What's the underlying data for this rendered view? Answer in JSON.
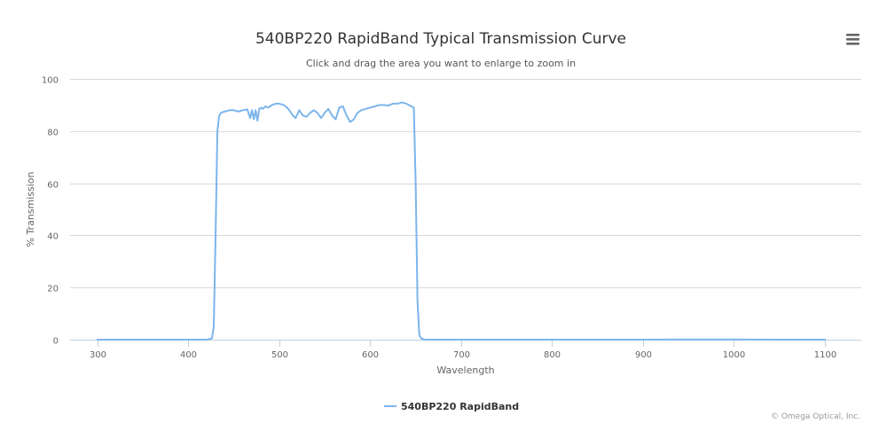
{
  "chart": {
    "title": "540BP220 RapidBand Typical Transmission Curve",
    "subtitle": "Click and drag the area you want to enlarge to zoom in",
    "credits": "© Omega Optical, Inc.",
    "menu_icon": "hamburger-menu-icon",
    "colors": {
      "background": "#ffffff",
      "series": "#7cb5ec",
      "grid": "#d8d8d8",
      "axis_line": "#c0d0e0",
      "title": "#333333",
      "label": "#666666",
      "legend_text": "#333333",
      "credits": "#999999"
    }
  },
  "chart_data": {
    "type": "line",
    "title": "540BP220 RapidBand Typical Transmission Curve",
    "subtitle": "Click and drag the area you want to enlarge to zoom in",
    "xlabel": "Wavelength",
    "ylabel": "% Transmission",
    "xlim": [
      270,
      1140
    ],
    "ylim": [
      0,
      100
    ],
    "x_ticks": [
      "300",
      "400",
      "500",
      "600",
      "700",
      "800",
      "900",
      "1000",
      "1100"
    ],
    "y_ticks": [
      "0",
      "20",
      "40",
      "60",
      "80",
      "100"
    ],
    "grid": "horizontal",
    "legend": "bottom-center",
    "series": [
      {
        "name": "540BP220 RapidBand",
        "x": [
          300,
          420,
          426,
          428,
          430,
          432,
          434,
          436,
          440,
          445,
          450,
          455,
          460,
          465,
          468,
          470,
          472,
          474,
          476,
          478,
          480,
          482,
          485,
          488,
          492,
          496,
          500,
          505,
          510,
          515,
          518,
          522,
          526,
          530,
          534,
          538,
          542,
          546,
          550,
          554,
          558,
          562,
          566,
          570,
          574,
          578,
          582,
          586,
          590,
          595,
          600,
          605,
          610,
          615,
          620,
          625,
          630,
          635,
          640,
          645,
          648,
          650,
          652,
          654,
          656,
          660,
          680,
          700,
          800,
          900,
          950,
          1000,
          1050,
          1100
        ],
        "values": [
          0,
          0,
          0.5,
          5,
          40,
          80,
          86,
          87,
          87.5,
          88,
          88,
          87.5,
          88,
          88.3,
          85,
          88,
          84.5,
          88,
          84,
          88.5,
          89,
          88.5,
          89.5,
          89,
          90,
          90.5,
          90.5,
          90,
          88.5,
          86,
          85,
          88,
          86,
          85.5,
          87,
          88,
          87,
          85,
          87,
          88.5,
          86,
          84.5,
          89,
          89.5,
          86,
          83.5,
          84.5,
          87,
          88,
          88.5,
          89,
          89.5,
          90,
          90,
          89.8,
          90.5,
          90.5,
          91,
          90.5,
          89.5,
          89,
          60,
          15,
          2,
          0.5,
          0,
          0,
          0,
          0,
          0,
          0.1,
          0.1,
          0,
          0
        ]
      }
    ]
  }
}
